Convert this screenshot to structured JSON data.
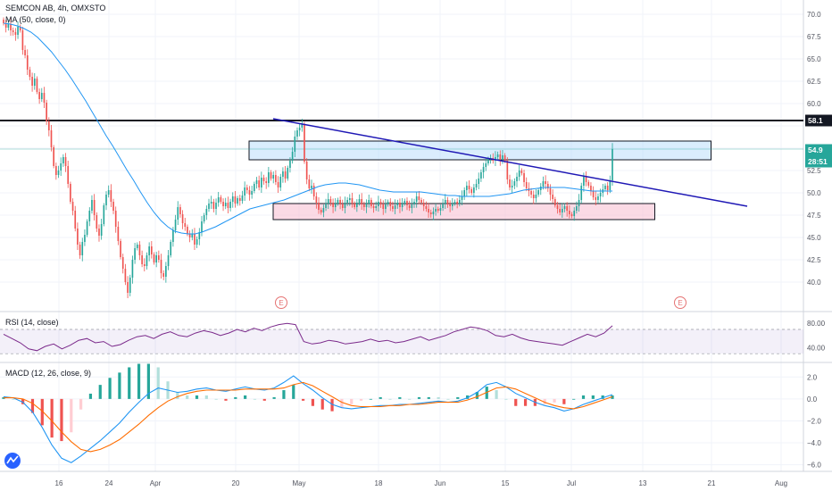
{
  "header": {
    "title": "SEMCON AB, 4h, OMXSTO",
    "ma_legend": "MA (50, close, 0)",
    "rsi_legend": "RSI (14, close)",
    "macd_legend": "MACD (12, 26, close, 9)"
  },
  "price_labels": {
    "resistance": "58.1",
    "last_price": "54.9",
    "countdown": "28:51"
  },
  "earnings_flags": [
    "E",
    "E"
  ],
  "colors": {
    "up": "#26a69a",
    "down": "#ef5350",
    "ma": "#2196f3",
    "trendline": "#1f18b5",
    "resistance": "#131722",
    "rsi": "#7b2a8b",
    "macd": "#2196f3",
    "signal": "#ff6d00",
    "last_price": "#26a69a"
  },
  "chart_data": [
    {
      "type": "candlestick",
      "title": "SEMCON AB, 4h, OMXSTO",
      "xlabel": "",
      "ylabel": "",
      "ylim": [
        37,
        71
      ],
      "x_ticks": [
        "16",
        "24",
        "Apr",
        "20",
        "May",
        "18",
        "Jun",
        "15",
        "Jul",
        "13",
        "21",
        "Aug"
      ],
      "y_ticks": [
        70.0,
        67.5,
        65.0,
        62.5,
        60.0,
        57.5,
        55.0,
        52.5,
        50.0,
        47.5,
        45.0,
        42.5,
        40.0
      ],
      "resistance_level": 58.1,
      "last_price": 54.9,
      "trendline": [
        [
          0.34,
          58.3
        ],
        [
          0.93,
          48.5
        ]
      ],
      "zones": [
        {
          "start": 0.31,
          "end": 0.885,
          "low": 53.7,
          "high": 55.8,
          "color": "#bbdefb"
        },
        {
          "start": 0.34,
          "end": 0.815,
          "low": 47.0,
          "high": 48.8,
          "color": "#f8bbd0"
        }
      ],
      "closes": [
        69.0,
        68.5,
        68.9,
        68.2,
        68.0,
        67.7,
        68.6,
        68.2,
        66.0,
        65.4,
        63.8,
        63.0,
        62.0,
        62.8,
        61.3,
        60.5,
        61.2,
        60.1,
        58.0,
        57.0,
        55.1,
        53.0,
        52.0,
        52.5,
        53.3,
        54.0,
        53.0,
        51.0,
        49.0,
        48.0,
        46.0,
        44.2,
        43.0,
        44.5,
        45.3,
        46.8,
        48.0,
        49.2,
        47.5,
        46.0,
        45.2,
        46.5,
        48.6,
        49.8,
        50.3,
        49.0,
        48.0,
        46.2,
        44.6,
        42.8,
        41.5,
        40.0,
        38.8,
        40.5,
        42.5,
        43.8,
        44.2,
        43.0,
        42.0,
        41.8,
        43.0,
        44.0,
        43.1,
        42.2,
        43.0,
        42.5,
        41.0,
        40.6,
        41.8,
        43.0,
        44.5,
        45.8,
        47.0,
        48.4,
        47.6,
        46.6,
        46.2,
        45.4,
        45.0,
        45.4,
        44.2,
        44.8,
        45.6,
        46.8,
        47.5,
        48.2,
        48.8,
        49.0,
        48.2,
        48.9,
        49.5,
        49.0,
        48.5,
        48.9,
        48.3,
        49.0,
        49.6,
        48.8,
        49.4,
        49.1,
        49.7,
        50.6,
        50.3,
        49.8,
        50.2,
        51.0,
        51.4,
        50.6,
        51.7,
        51.3,
        51.1,
        52.3,
        51.6,
        52.0,
        51.2,
        50.6,
        51.8,
        52.4,
        51.6,
        52.8,
        53.6,
        54.6,
        56.3,
        57.0,
        57.3,
        57.7,
        53.5,
        51.5,
        50.5,
        50.8,
        49.6,
        48.9,
        48.1,
        47.8,
        48.3,
        48.8,
        49.3,
        48.9,
        48.4,
        48.8,
        49.2,
        48.7,
        48.3,
        48.9,
        49.2,
        49.4,
        48.8,
        48.4,
        48.9,
        49.3,
        48.7,
        48.4,
        48.8,
        49.2,
        48.5,
        48.3,
        48.5,
        49.0,
        48.7,
        48.2,
        48.7,
        49.0,
        48.5,
        48.2,
        48.6,
        48.9,
        48.4,
        48.8,
        49.1,
        48.6,
        48.3,
        48.7,
        49.0,
        49.6,
        49.2,
        48.9,
        48.5,
        48.2,
        47.8,
        47.6,
        47.9,
        48.2,
        48.0,
        48.3,
        48.8,
        49.2,
        48.7,
        48.5,
        48.8,
        49.0,
        48.8,
        49.2,
        49.6,
        50.3,
        50.8,
        50.4,
        50.0,
        50.6,
        51.0,
        51.6,
        52.3,
        52.9,
        53.3,
        53.8,
        53.9,
        53.6,
        54.0,
        54.3,
        53.7,
        54.2,
        53.6,
        51.5,
        50.6,
        50.8,
        51.3,
        51.8,
        52.5,
        52.2,
        51.2,
        50.5,
        50.2,
        49.8,
        49.4,
        49.8,
        50.3,
        50.7,
        51.3,
        51.0,
        50.5,
        49.8,
        49.3,
        48.6,
        48.2,
        47.8,
        48.2,
        48.5,
        48.0,
        47.6,
        47.4,
        48.0,
        48.5,
        49.2,
        50.8,
        51.8,
        51.2,
        50.8,
        50.2,
        49.5,
        49.2,
        49.6,
        50.0,
        50.4,
        50.8,
        50.3,
        51.4,
        54.9
      ],
      "ma50": [
        69.0,
        68.9,
        68.7,
        68.4,
        68.0,
        67.4,
        66.6,
        65.8,
        64.8,
        63.8,
        62.7,
        61.5,
        60.3,
        59.0,
        57.7,
        56.4,
        55.2,
        53.9,
        52.6,
        51.4,
        50.1,
        48.9,
        47.8,
        46.9,
        46.2,
        45.7,
        45.5,
        45.4,
        45.4,
        45.6,
        45.9,
        46.2,
        46.6,
        47.0,
        47.4,
        47.8,
        48.2,
        48.4,
        48.6,
        48.8,
        49.0,
        49.2,
        49.5,
        49.8,
        50.1,
        50.4,
        50.7,
        50.9,
        51.0,
        51.1,
        51.1,
        51.0,
        50.9,
        50.7,
        50.5,
        50.3,
        50.2,
        50.1,
        50.1,
        50.1,
        50.1,
        50.1,
        50.0,
        49.9,
        49.8,
        49.7,
        49.7,
        49.6,
        49.6,
        49.6,
        49.6,
        49.6,
        49.7,
        49.8,
        49.9,
        50.1,
        50.3,
        50.4,
        50.5,
        50.6,
        50.6,
        50.6,
        50.6,
        50.5,
        50.4,
        50.3,
        50.2,
        50.2,
        50.2,
        50.2
      ],
      "rsi": [
        62,
        55,
        48,
        38,
        35,
        42,
        46,
        38,
        44,
        52,
        55,
        48,
        50,
        42,
        45,
        52,
        58,
        60,
        55,
        62,
        66,
        60,
        58,
        64,
        68,
        65,
        60,
        64,
        70,
        66,
        72,
        68,
        74,
        78,
        80,
        78,
        50,
        46,
        48,
        52,
        50,
        46,
        48,
        50,
        54,
        50,
        52,
        48,
        50,
        54,
        58,
        52,
        56,
        60,
        66,
        70,
        74,
        72,
        68,
        60,
        58,
        62,
        56,
        52,
        50,
        48,
        46,
        44,
        50,
        56,
        62,
        58,
        64,
        76
      ],
      "macd": [
        0.2,
        0.1,
        -0.3,
        -1.2,
        -2.6,
        -4.2,
        -5.4,
        -5.8,
        -5.2,
        -4.5,
        -3.8,
        -3.0,
        -2.2,
        -1.2,
        -0.3,
        0.5,
        1.0,
        0.8,
        0.6,
        0.7,
        0.9,
        1.0,
        0.8,
        0.7,
        0.9,
        1.1,
        0.9,
        0.8,
        1.0,
        1.5,
        2.1,
        1.4,
        0.8,
        0.1,
        -0.5,
        -0.8,
        -0.9,
        -0.8,
        -0.7,
        -0.6,
        -0.6,
        -0.5,
        -0.5,
        -0.4,
        -0.3,
        -0.2,
        -0.3,
        -0.2,
        0.1,
        0.6,
        1.3,
        1.5,
        1.1,
        0.5,
        0.1,
        -0.3,
        -0.6,
        -0.8,
        -1.1,
        -0.9,
        -0.5,
        -0.2,
        0.1,
        0.4
      ],
      "signal": [
        0.1,
        0.1,
        0.0,
        -0.4,
        -1.1,
        -2.0,
        -3.0,
        -3.9,
        -4.6,
        -4.8,
        -4.6,
        -4.2,
        -3.7,
        -3.0,
        -2.3,
        -1.5,
        -0.8,
        -0.2,
        0.2,
        0.5,
        0.7,
        0.8,
        0.8,
        0.8,
        0.8,
        0.9,
        0.9,
        0.9,
        0.9,
        1.0,
        1.3,
        1.5,
        1.2,
        0.7,
        0.2,
        -0.3,
        -0.6,
        -0.7,
        -0.7,
        -0.7,
        -0.6,
        -0.6,
        -0.5,
        -0.5,
        -0.4,
        -0.3,
        -0.3,
        -0.3,
        -0.1,
        0.2,
        0.6,
        1.0,
        1.1,
        0.9,
        0.5,
        0.1,
        -0.3,
        -0.6,
        -0.8,
        -0.9,
        -0.7,
        -0.4,
        -0.1,
        0.2
      ],
      "rsi_ticks": [
        80.0,
        40.0
      ],
      "macd_ticks": [
        2.0,
        0.0,
        -2.0,
        -4.0,
        -6.0
      ]
    }
  ]
}
